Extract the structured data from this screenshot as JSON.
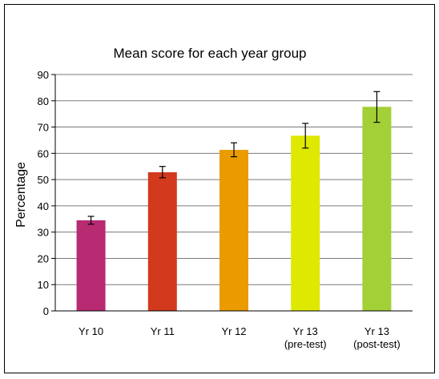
{
  "chart_data": {
    "type": "bar",
    "title": "Mean score for each year group",
    "xlabel": "",
    "ylabel": "Percentage",
    "ylim": [
      0,
      90
    ],
    "yticks": [
      0,
      10,
      20,
      30,
      40,
      50,
      60,
      70,
      80,
      90
    ],
    "grid": true,
    "legend": "none",
    "categories": [
      [
        "Yr 10"
      ],
      [
        "Yr 11"
      ],
      [
        "Yr 12"
      ],
      [
        "Yr 13",
        "(pre-test)"
      ],
      [
        "Yr 13",
        "(post-test)"
      ]
    ],
    "values": [
      34.5,
      52.8,
      61.3,
      66.7,
      77.7
    ],
    "error_low": [
      33.0,
      50.7,
      58.7,
      62.0,
      71.8
    ],
    "error_high": [
      36.0,
      55.0,
      64.0,
      71.4,
      83.5
    ],
    "colors": [
      "#b82a72",
      "#d2391d",
      "#e99b00",
      "#dfe800",
      "#a3cf37"
    ]
  }
}
